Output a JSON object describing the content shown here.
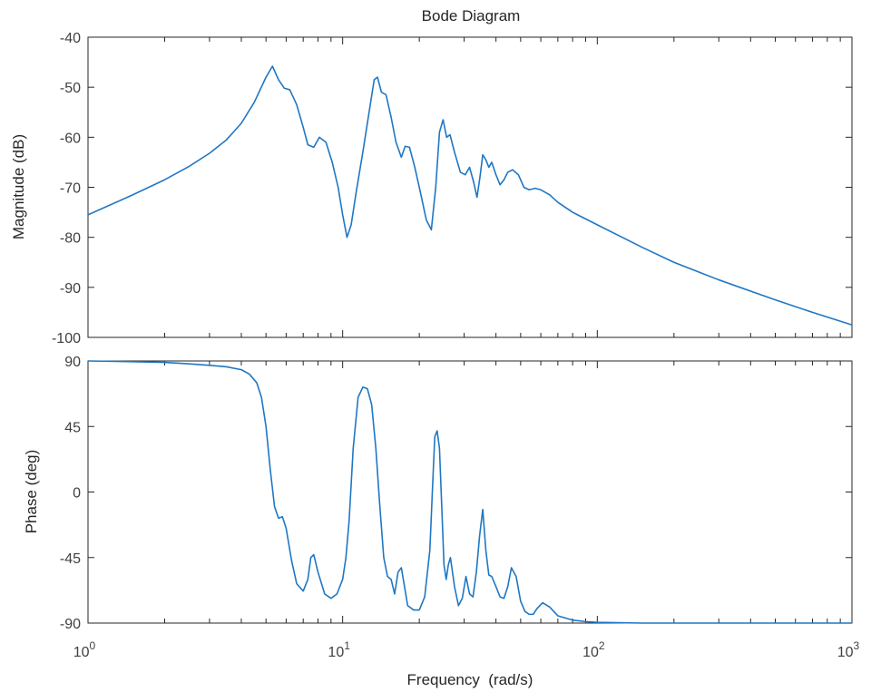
{
  "chart_data": [
    {
      "type": "line",
      "title": "Bode Diagram",
      "ylabel": "Magnitude (dB)",
      "xscale": "log",
      "xlim": [
        1,
        1000
      ],
      "ylim": [
        -100,
        -40
      ],
      "yticks": [
        "-40",
        "-50",
        "-60",
        "-70",
        "-80",
        "-90",
        "-100"
      ],
      "series": [
        {
          "color": "#1f77c4",
          "x": [
            1,
            1.5,
            2,
            2.5,
            3,
            3.5,
            4,
            4.5,
            5,
            5.3,
            5.6,
            5.9,
            6.2,
            6.6,
            7,
            7.3,
            7.7,
            8.1,
            8.6,
            9.1,
            9.6,
            10,
            10.4,
            10.8,
            11.3,
            12,
            12.7,
            13.3,
            13.7,
            14.2,
            14.8,
            15.5,
            16.2,
            17,
            17.6,
            18.3,
            19.2,
            20.2,
            21.3,
            22.3,
            23.2,
            24,
            24.8,
            25.6,
            26.4,
            27.5,
            29,
            30.3,
            31.5,
            32.7,
            33.7,
            34.6,
            35.5,
            36.5,
            37.5,
            38.5,
            40,
            41.5,
            43,
            44.5,
            46.5,
            49,
            51.5,
            54,
            57,
            60,
            65,
            70,
            80,
            100,
            150,
            200,
            300,
            500,
            700,
            1000
          ],
          "values": [
            -75.5,
            -71.5,
            -68.5,
            -65.8,
            -63.2,
            -60.5,
            -57.2,
            -53.0,
            -48.0,
            -45.8,
            -48.5,
            -50.2,
            -50.5,
            -53.5,
            -58.0,
            -61.5,
            -62.0,
            -60.0,
            -61.0,
            -65.0,
            -70.0,
            -75.5,
            -80.0,
            -77.5,
            -71.0,
            -63.0,
            -55.0,
            -48.5,
            -48.0,
            -51.0,
            -51.5,
            -56.0,
            -61.0,
            -64.0,
            -61.8,
            -62.0,
            -66.0,
            -71.0,
            -76.5,
            -78.5,
            -70.0,
            -59.0,
            -56.5,
            -60.0,
            -59.5,
            -63.0,
            -67.0,
            -67.5,
            -66.0,
            -69.0,
            -72.0,
            -68.0,
            -63.5,
            -64.5,
            -66.0,
            -65.0,
            -67.5,
            -69.5,
            -68.5,
            -67.0,
            -66.5,
            -67.5,
            -70.0,
            -70.5,
            -70.2,
            -70.5,
            -71.5,
            -73.0,
            -75.0,
            -77.5,
            -82.0,
            -85.0,
            -88.5,
            -92.5,
            -95.0,
            -97.5
          ]
        }
      ]
    },
    {
      "type": "line",
      "xlabel": "Frequency  (rad/s)",
      "ylabel": "Phase (deg)",
      "xscale": "log",
      "xlim": [
        1,
        1000
      ],
      "ylim": [
        -90,
        90
      ],
      "xticks": [
        {
          "base": "10",
          "exp": "0"
        },
        {
          "base": "10",
          "exp": "1"
        },
        {
          "base": "10",
          "exp": "2"
        },
        {
          "base": "10",
          "exp": "3"
        }
      ],
      "yticks": [
        "90",
        "45",
        "0",
        "-45",
        "-90"
      ],
      "series": [
        {
          "color": "#1f77c4",
          "x": [
            1,
            1.5,
            2,
            2.5,
            3,
            3.5,
            4,
            4.3,
            4.6,
            4.8,
            5,
            5.2,
            5.4,
            5.6,
            5.8,
            6,
            6.3,
            6.6,
            7,
            7.3,
            7.5,
            7.7,
            8,
            8.5,
            9,
            9.5,
            10,
            10.3,
            10.6,
            11,
            11.5,
            12,
            12.5,
            13,
            13.5,
            14,
            14.5,
            15,
            15.5,
            16,
            16.5,
            17,
            17.5,
            18,
            19,
            20,
            21,
            22,
            22.5,
            23,
            23.5,
            24,
            24.5,
            25,
            25.5,
            26,
            26.5,
            27.5,
            28.5,
            29.5,
            30.5,
            31.5,
            32.5,
            33.5,
            34.5,
            35.5,
            36.5,
            37.5,
            38.5,
            40,
            41.5,
            43,
            44.5,
            46,
            48,
            50,
            52,
            54,
            56,
            58,
            61,
            65,
            70,
            80,
            90,
            100,
            150,
            200,
            300,
            500,
            700,
            1000
          ],
          "values": [
            90,
            89.5,
            89,
            88,
            87,
            86,
            84,
            81,
            75,
            65,
            45,
            15,
            -10,
            -18,
            -17,
            -25,
            -47,
            -63,
            -68,
            -60,
            -45,
            -43,
            -55,
            -70,
            -73,
            -70,
            -60,
            -45,
            -20,
            30,
            65,
            72,
            71,
            60,
            30,
            -10,
            -45,
            -58,
            -60,
            -70,
            -55,
            -52,
            -65,
            -78,
            -81,
            -81,
            -72,
            -40,
            0,
            38,
            42,
            30,
            -10,
            -50,
            -60,
            -50,
            -45,
            -65,
            -78,
            -73,
            -58,
            -70,
            -72,
            -55,
            -30,
            -12,
            -40,
            -57,
            -58,
            -65,
            -72,
            -73,
            -65,
            -52,
            -58,
            -75,
            -82,
            -84,
            -84,
            -80,
            -76,
            -79,
            -85,
            -88,
            -89,
            -89.5,
            -90,
            -90,
            -90,
            -90,
            -90,
            -90
          ]
        }
      ]
    }
  ]
}
